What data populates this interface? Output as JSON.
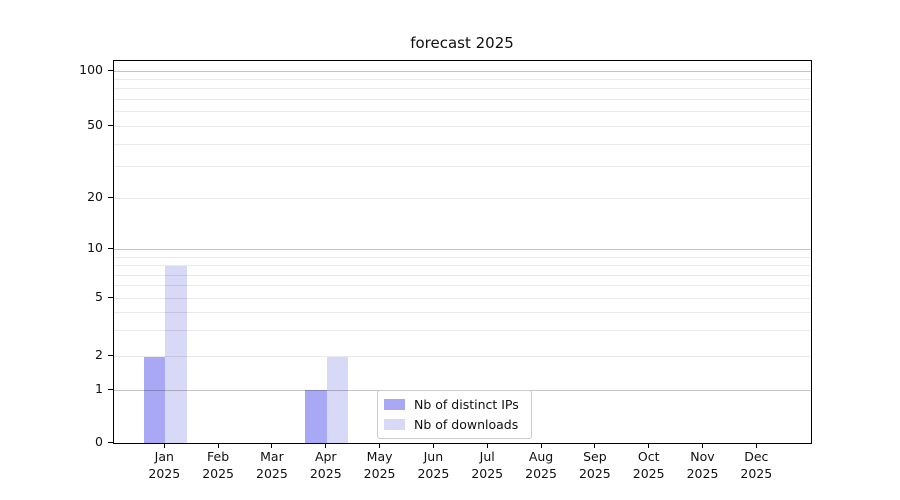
{
  "chart_data": {
    "type": "bar",
    "title": "forecast 2025",
    "categories": [
      {
        "month": "Jan",
        "year": "2025"
      },
      {
        "month": "Feb",
        "year": "2025"
      },
      {
        "month": "Mar",
        "year": "2025"
      },
      {
        "month": "Apr",
        "year": "2025"
      },
      {
        "month": "May",
        "year": "2025"
      },
      {
        "month": "Jun",
        "year": "2025"
      },
      {
        "month": "Jul",
        "year": "2025"
      },
      {
        "month": "Aug",
        "year": "2025"
      },
      {
        "month": "Sep",
        "year": "2025"
      },
      {
        "month": "Oct",
        "year": "2025"
      },
      {
        "month": "Nov",
        "year": "2025"
      },
      {
        "month": "Dec",
        "year": "2025"
      }
    ],
    "series": [
      {
        "name": "Nb of distinct IPs",
        "color": "#a8a8f4",
        "values": [
          2,
          0,
          0,
          1,
          0,
          0,
          0,
          0,
          0,
          0,
          0,
          0
        ]
      },
      {
        "name": "Nb of downloads",
        "color": "#d8d8f7",
        "values": [
          8,
          0,
          0,
          2,
          0,
          0,
          0,
          0,
          0,
          0,
          0,
          0
        ]
      }
    ],
    "y_axis": {
      "scale": "log(1+v)",
      "ticks": [
        0,
        1,
        2,
        5,
        10,
        20,
        50,
        100
      ],
      "range": [
        0,
        113
      ]
    },
    "gridlines": {
      "major": [
        1,
        10,
        100
      ],
      "minor": [
        2,
        3,
        4,
        5,
        6,
        7,
        8,
        9,
        20,
        30,
        40,
        50,
        60,
        70,
        80,
        90
      ],
      "major_color": "#c5c5c5",
      "minor_color": "#e9e9e9"
    },
    "legend": {
      "position": "lower-center-inside"
    },
    "colors": {
      "spine": "#000000",
      "text": "#111111",
      "background": "#ffffff"
    }
  }
}
